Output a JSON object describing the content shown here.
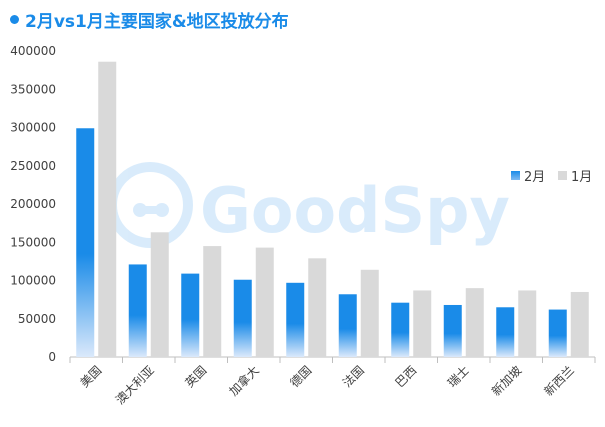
{
  "title": "2月vs1月主要国家&地区投放分布",
  "watermark": {
    "text": "GoodSpy",
    "icon": "goodspy-logo-icon"
  },
  "colors": {
    "accent": "#1a8be8",
    "series_feb": "#1a8be8",
    "series_jan": "#d9d9d9"
  },
  "chart_data": {
    "type": "bar",
    "title": "2月vs1月主要国家&地区投放分布",
    "categories": [
      "美国",
      "澳大利亚",
      "英国",
      "加拿大",
      "德国",
      "法国",
      "巴西",
      "瑞士",
      "新加坡",
      "新西兰"
    ],
    "series": [
      {
        "name": "2月",
        "values": [
          299000,
          121000,
          109000,
          101000,
          97000,
          82000,
          71000,
          68000,
          65000,
          62000
        ]
      },
      {
        "name": "1月",
        "values": [
          386000,
          163000,
          145000,
          143000,
          129000,
          114000,
          87000,
          90000,
          87000,
          85000
        ]
      }
    ],
    "yticks": [
      "0",
      "50000",
      "100000",
      "150000",
      "200000",
      "250000",
      "300000",
      "350000",
      "400000"
    ],
    "ylim": [
      0,
      400000
    ],
    "xlabel": "",
    "ylabel": "",
    "grid": false,
    "legend": "right"
  }
}
